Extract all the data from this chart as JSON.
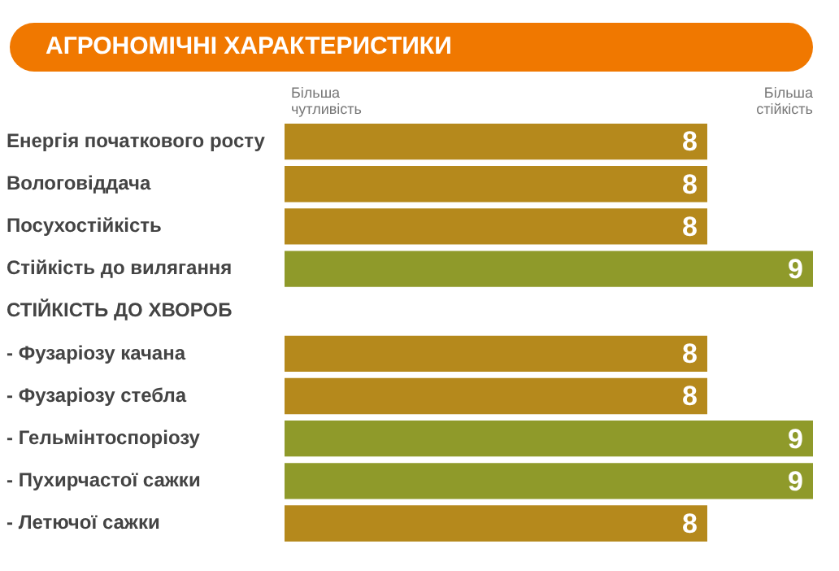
{
  "chart_data": {
    "type": "bar",
    "orientation": "horizontal",
    "title": "АГРОНОМІЧНІ ХАРАКТЕРИСТИКИ",
    "categories": [
      "Енергія початкового росту",
      "Вологовіддача",
      "Посухостійкість",
      "Стійкість до вилягання",
      "СТІЙКІСТЬ ДО ХВОРОБ",
      "- Фузаріозу качана",
      "- Фузаріозу стебла",
      "- Гельмінтоспоріозу",
      "- Пухирчастої сажки",
      "- Летючої сажки"
    ],
    "values": [
      8,
      8,
      8,
      9,
      null,
      8,
      8,
      9,
      9,
      8
    ],
    "colors": [
      "#b5891c",
      "#b5891c",
      "#b5891c",
      "#8f9a2a",
      "#b5891c",
      "#b5891c",
      "#b5891c",
      "#8f9a2a",
      "#8f9a2a",
      "#b5891c"
    ],
    "xlim": [
      4,
      9
    ],
    "data_labels": true,
    "grid": false,
    "legend": false,
    "annotations": [
      "Більша чутливість",
      "Більша стійкість"
    ]
  }
}
